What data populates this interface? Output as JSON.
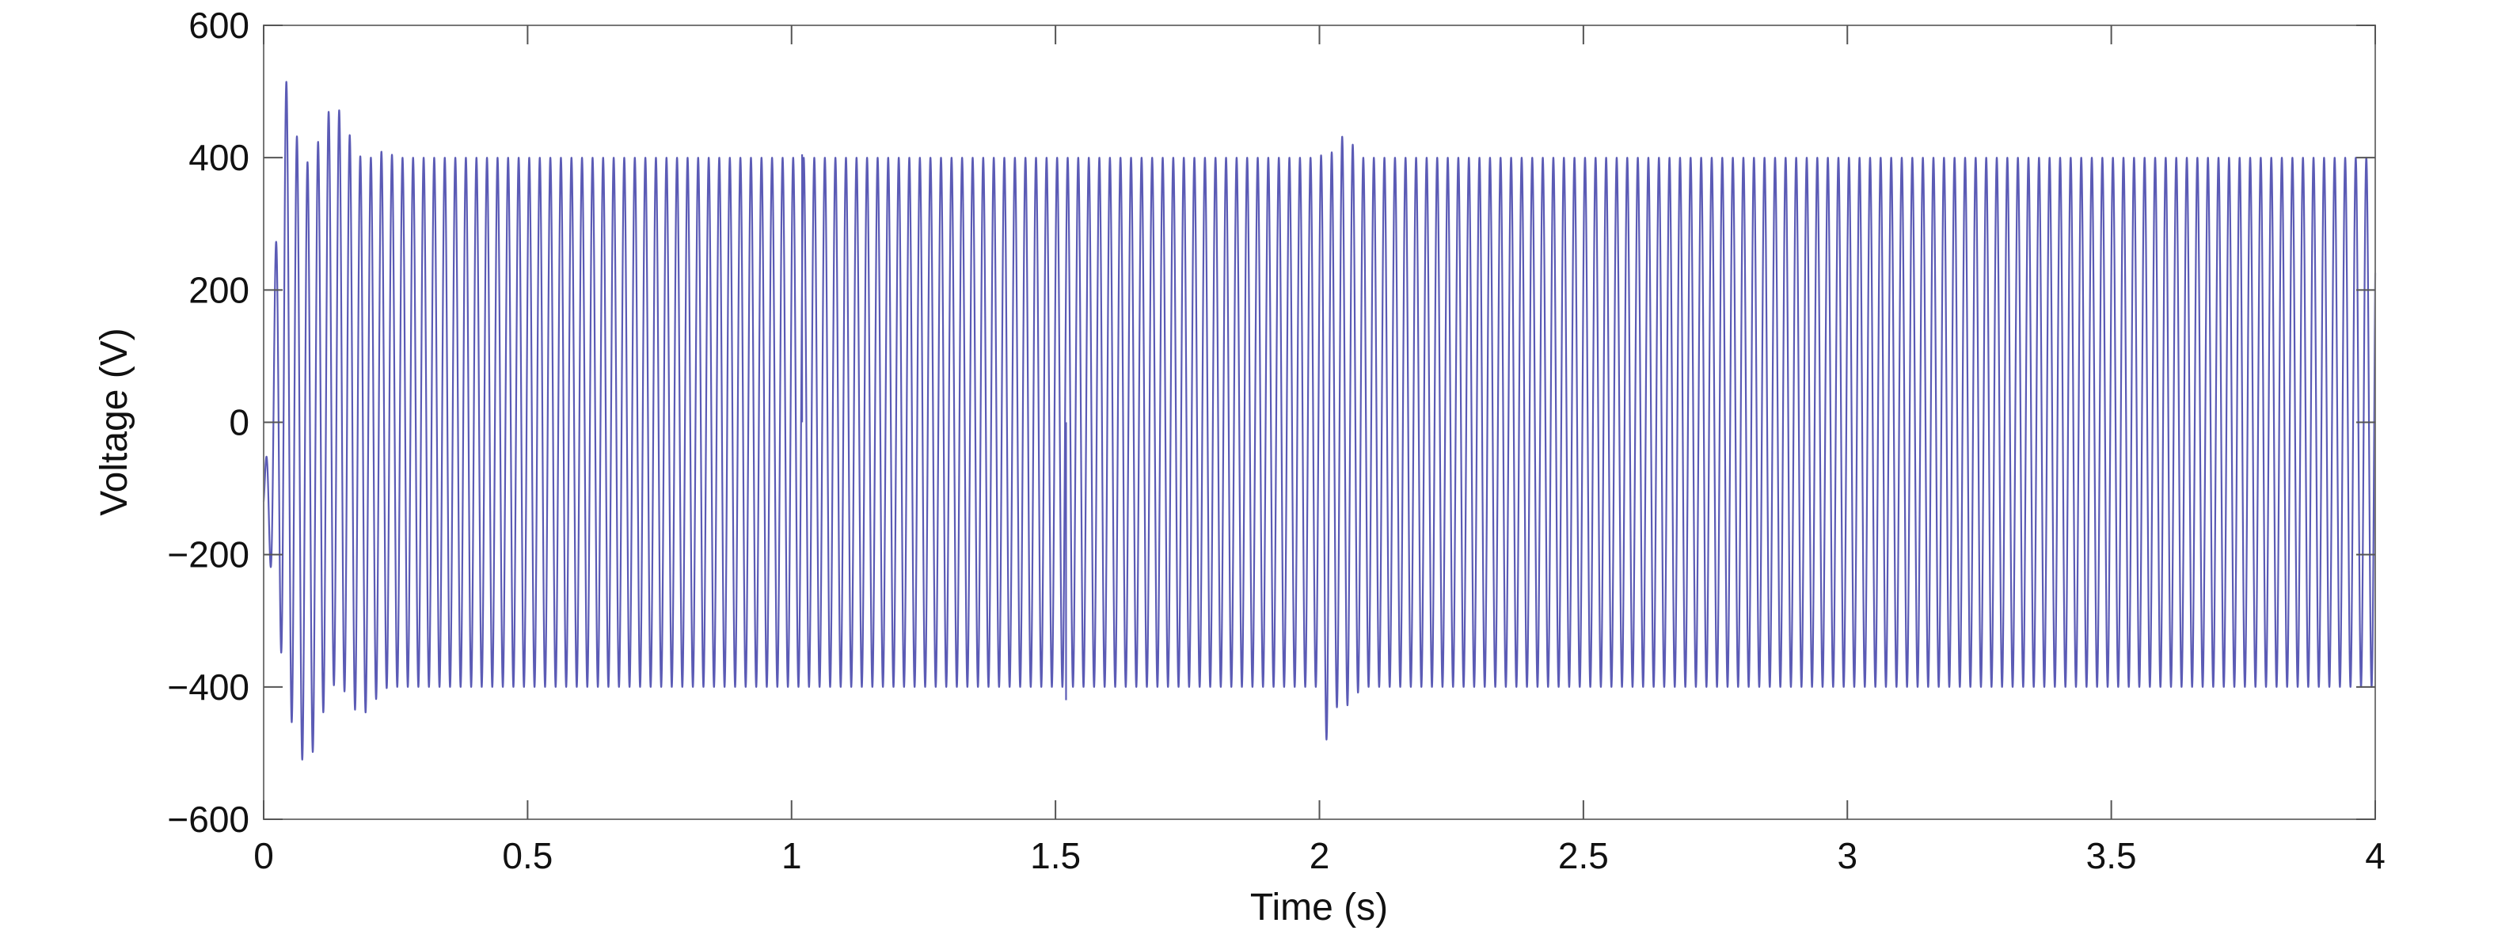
{
  "chart_data": {
    "type": "line",
    "title": "",
    "xlabel": "Time (s)",
    "ylabel": "Voltage (V)",
    "xlim": [
      0,
      4
    ],
    "ylim": [
      -600,
      600
    ],
    "x_ticks": [
      0,
      0.5,
      1,
      1.5,
      2,
      2.5,
      3,
      3.5,
      4
    ],
    "x_tick_labels": [
      "0",
      "0.5",
      "1",
      "1.5",
      "2",
      "2.5",
      "3",
      "3.5",
      "4"
    ],
    "y_ticks": [
      600,
      400,
      200,
      0,
      -200,
      -400,
      -600
    ],
    "y_tick_labels": [
      "600",
      "400",
      "200",
      "0",
      "−200",
      "−400",
      "−600"
    ],
    "grid": false,
    "legend": "none",
    "series": [
      {
        "color": "#5b5bb5",
        "frequency_hz": 50,
        "amplitude_v": 400,
        "start_transient": {
          "interval_s": [
            0,
            0.25
          ],
          "peak_max_v": 475,
          "peak_min_v": -490
        },
        "disturbance": {
          "interval_s": [
            2.0,
            2.08
          ],
          "peak_max_v": 430,
          "peak_min_v": -535
        },
        "minor_spikes": [
          {
            "t_s": 1.52,
            "v": -420
          },
          {
            "t_s": 1.02,
            "v": 405
          }
        ]
      }
    ]
  }
}
